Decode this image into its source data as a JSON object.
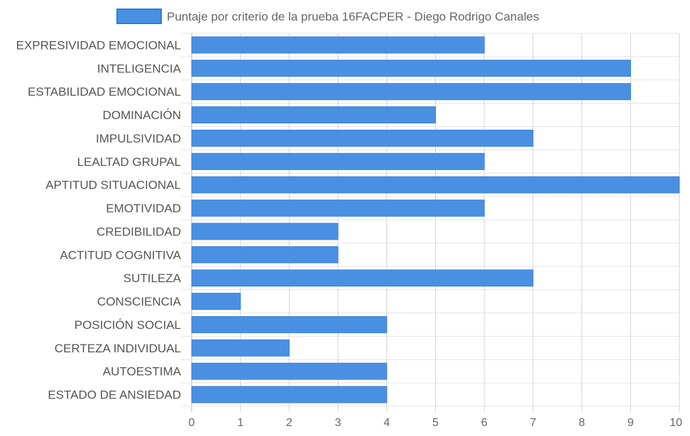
{
  "chart_data": {
    "type": "bar",
    "orientation": "horizontal",
    "categories": [
      "EXPRESIVIDAD EMOCIONAL",
      "INTELIGENCIA",
      "ESTABILIDAD EMOCIONAL",
      "DOMINACIÓN",
      "IMPULSIVIDAD",
      "LEALTAD GRUPAL",
      "APTITUD SITUACIONAL",
      "EMOTIVIDAD",
      "CREDIBILIDAD",
      "ACTITUD COGNITIVA",
      "SUTILEZA",
      "CONSCIENCIA",
      "POSICIÓN SOCIAL",
      "CERTEZA INDIVIDUAL",
      "AUTOESTIMA",
      "ESTADO DE ANSIEDAD"
    ],
    "series": [
      {
        "name": "Puntaje por criterio de la prueba 16FACPER - Diego Rodrigo Canales",
        "values": [
          6,
          9,
          9,
          5,
          7,
          6,
          10,
          6,
          3,
          3,
          7,
          1,
          4,
          2,
          4,
          4
        ],
        "color": "#4a90e2"
      }
    ],
    "xlim": [
      0,
      10
    ],
    "x_ticks": [
      "0",
      "1",
      "2",
      "3",
      "4",
      "5",
      "6",
      "7",
      "8",
      "9",
      "10"
    ],
    "grid": true,
    "legend_position": "top"
  }
}
